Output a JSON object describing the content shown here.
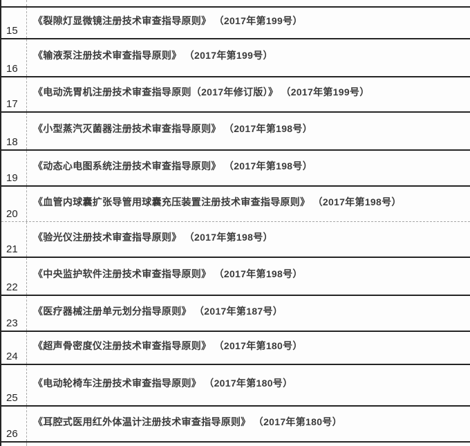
{
  "table": {
    "description": "list-of-guidance-documents",
    "rows": [
      {
        "num": "15",
        "text": "《裂隙灯显微镜注册技术审查指导原则》 （2017年第199号）"
      },
      {
        "num": "16",
        "text": "《输液泵注册技术审查指导原则》 （2017年第199号）"
      },
      {
        "num": "17",
        "text": "《电动洗胃机注册技术审查指导原则（2017年修订版）》 （2017年第199号）"
      },
      {
        "num": "18",
        "text": "《小型蒸汽灭菌器注册技术审查指导原则》 （2017年第198号）"
      },
      {
        "num": "19",
        "text": "《动态心电图系统注册技术审查指导原则》 （2017年第198号）"
      },
      {
        "num": "20",
        "text": "《血管内球囊扩张导管用球囊充压装置注册技术审查指导原则》 （2017年第198号）"
      },
      {
        "num": "21",
        "text": "《验光仪注册技术审查指导原则》 （2017年第198号）"
      },
      {
        "num": "22",
        "text": "《中央监护软件注册技术审查指导原则》 （2017年第198号）"
      },
      {
        "num": "23",
        "text": "《医疗器械注册单元划分指导原则》 （2017年第187号）"
      },
      {
        "num": "24",
        "text": "《超声骨密度仪注册技术审查指导原则》 （2017年第180号）"
      },
      {
        "num": "25",
        "text": "《电动轮椅车注册技术审查指导原则》 （2017年第180号）"
      },
      {
        "num": "26",
        "text": "《耳腔式医用红外体温计注册技术审查指导原则》 （2017年第180号）"
      }
    ],
    "colors": {
      "border_solid": "#242424",
      "border_dashed": "#a9a9a9",
      "text": "#3b3b3b",
      "background": "#fdfdfd"
    }
  }
}
